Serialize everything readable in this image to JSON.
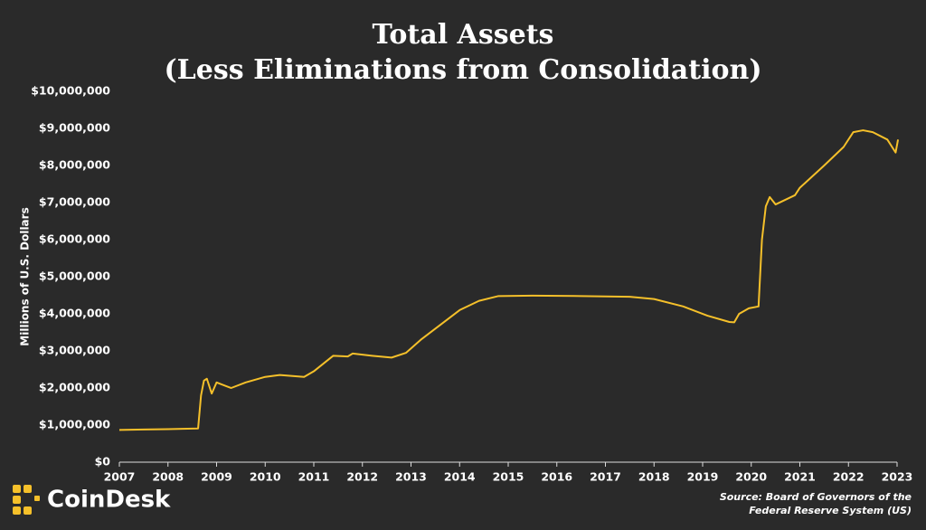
{
  "chart_data": {
    "type": "line",
    "title": [
      "Total Assets",
      "(Less Eliminations from Consolidation)"
    ],
    "y_label": "Millions of U.S. Dollars",
    "brand": "CoinDesk",
    "source": [
      "Source: Board of Governors of the",
      "Federal Reserve System (US)"
    ],
    "color": "#f5c02a",
    "grid": false,
    "x": [
      2007.0,
      2007.5,
      2008.0,
      2008.3,
      2008.62,
      2008.68,
      2008.74,
      2008.8,
      2008.9,
      2009.0,
      2009.1,
      2009.3,
      2009.6,
      2010.0,
      2010.3,
      2010.8,
      2011.0,
      2011.4,
      2011.7,
      2011.8,
      2012.2,
      2012.6,
      2012.9,
      2013.2,
      2013.6,
      2014.0,
      2014.4,
      2014.8,
      2015.5,
      2016.5,
      2017.5,
      2018.0,
      2018.6,
      2019.1,
      2019.55,
      2019.65,
      2019.75,
      2019.95,
      2020.15,
      2020.22,
      2020.3,
      2020.38,
      2020.5,
      2020.9,
      2021.0,
      2021.5,
      2021.9,
      2022.1,
      2022.3,
      2022.5,
      2022.8,
      2022.97,
      2023.02
    ],
    "values": [
      870000,
      880000,
      890000,
      900000,
      910000,
      1800000,
      2200000,
      2250000,
      1850000,
      2150000,
      2100000,
      2000000,
      2150000,
      2300000,
      2350000,
      2300000,
      2450000,
      2870000,
      2850000,
      2930000,
      2870000,
      2820000,
      2950000,
      3300000,
      3700000,
      4100000,
      4350000,
      4480000,
      4490000,
      4480000,
      4460000,
      4400000,
      4200000,
      3950000,
      3780000,
      3770000,
      4000000,
      4150000,
      4200000,
      6000000,
      6900000,
      7150000,
      6950000,
      7200000,
      7400000,
      8000000,
      8500000,
      8900000,
      8950000,
      8900000,
      8700000,
      8350000,
      8700000
    ],
    "xlim": [
      2007,
      2023
    ],
    "xticks": [
      2007,
      2008,
      2009,
      2010,
      2011,
      2012,
      2013,
      2014,
      2015,
      2016,
      2017,
      2018,
      2019,
      2020,
      2021,
      2022,
      2023
    ],
    "ylim": [
      0,
      10000000
    ],
    "yticks": [
      {
        "value": 0,
        "label": "$0"
      },
      {
        "value": 1000000,
        "label": "$1,000,000"
      },
      {
        "value": 2000000,
        "label": "$2,000,000"
      },
      {
        "value": 3000000,
        "label": "$3,000,000"
      },
      {
        "value": 4000000,
        "label": "$4,000,000"
      },
      {
        "value": 5000000,
        "label": "$5,000,000"
      },
      {
        "value": 6000000,
        "label": "$6,000,000"
      },
      {
        "value": 7000000,
        "label": "$7,000,000"
      },
      {
        "value": 8000000,
        "label": "$8,000,000"
      },
      {
        "value": 9000000,
        "label": "$9,000,000"
      },
      {
        "value": 10000000,
        "label": "$10,000,000"
      }
    ]
  }
}
